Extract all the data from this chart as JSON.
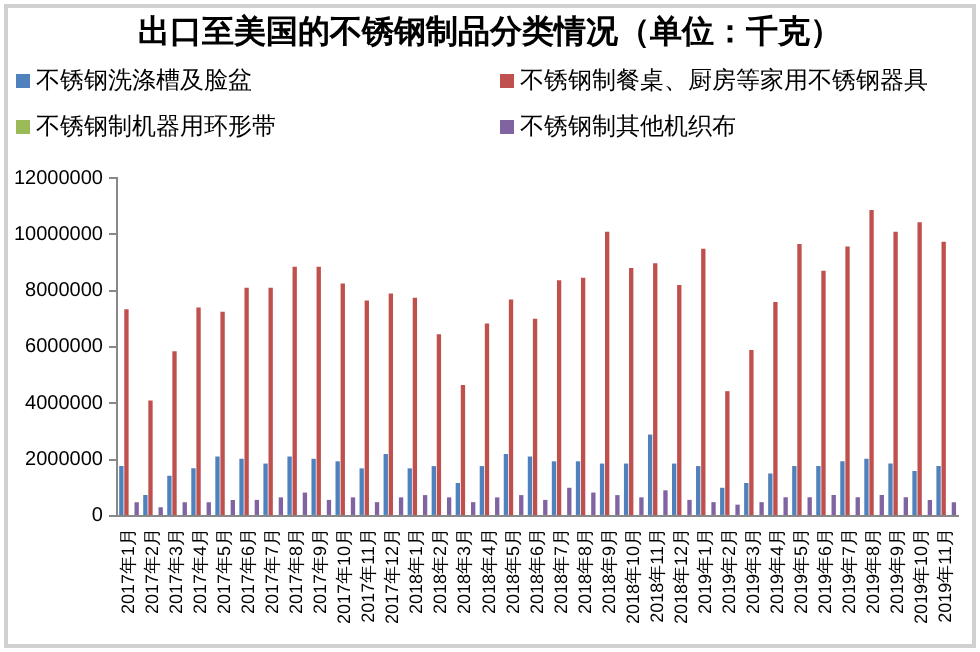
{
  "chart_data": {
    "type": "bar",
    "title": "出口至美国的不锈钢制品分类情况（单位：千克）",
    "categories": [
      "2017年1月",
      "2017年2月",
      "2017年3月",
      "2017年4月",
      "2017年5月",
      "2017年6月",
      "2017年7月",
      "2017年8月",
      "2017年9月",
      "2017年10月",
      "2017年11月",
      "2017年12月",
      "2018年1月",
      "2018年2月",
      "2018年3月",
      "2018年4月",
      "2018年5月",
      "2018年6月",
      "2018年7月",
      "2018年8月",
      "2018年9月",
      "2018年10月",
      "2018年11月",
      "2018年12月",
      "2019年1月",
      "2019年2月",
      "2019年3月",
      "2019年4月",
      "2019年5月",
      "2019年6月",
      "2019年7月",
      "2019年8月",
      "2019年9月",
      "2019年10月",
      "2019年11月"
    ],
    "series": [
      {
        "name": "不锈钢洗涤槽及脸盆",
        "color": "#4f81bd",
        "values": [
          1770000,
          740000,
          1430000,
          1690000,
          2110000,
          2030000,
          1860000,
          2110000,
          2030000,
          1940000,
          1690000,
          2200000,
          1690000,
          1770000,
          1170000,
          1770000,
          2200000,
          2110000,
          1940000,
          1940000,
          1860000,
          1860000,
          2890000,
          1860000,
          1770000,
          1000000,
          1170000,
          1510000,
          1770000,
          1770000,
          1940000,
          2030000,
          1860000,
          1600000,
          1770000
        ]
      },
      {
        "name": "不锈钢制餐桌、厨房等家用不锈钢器具",
        "color": "#c0504d",
        "values": [
          7340000,
          4100000,
          5850000,
          7400000,
          7250000,
          8100000,
          8100000,
          8850000,
          8850000,
          8250000,
          7650000,
          7900000,
          7750000,
          6450000,
          4650000,
          6830000,
          7690000,
          7000000,
          8370000,
          8460000,
          10090000,
          8800000,
          8970000,
          8200000,
          9490000,
          4430000,
          5890000,
          7600000,
          9660000,
          8710000,
          9570000,
          10860000,
          10090000,
          10430000,
          9740000
        ]
      },
      {
        "name": "不锈钢制机器用环形带",
        "color": "#9bbb59",
        "values": [
          0,
          0,
          0,
          0,
          0,
          0,
          0,
          0,
          0,
          0,
          0,
          0,
          0,
          0,
          0,
          0,
          0,
          0,
          0,
          0,
          0,
          0,
          0,
          0,
          0,
          0,
          0,
          0,
          0,
          0,
          0,
          0,
          0,
          0,
          0
        ]
      },
      {
        "name": "不锈钢制其他机织布",
        "color": "#8064a2",
        "values": [
          490000,
          310000,
          490000,
          490000,
          570000,
          570000,
          660000,
          830000,
          570000,
          660000,
          490000,
          660000,
          740000,
          660000,
          490000,
          660000,
          740000,
          570000,
          1000000,
          830000,
          740000,
          660000,
          910000,
          570000,
          490000,
          400000,
          490000,
          660000,
          660000,
          740000,
          660000,
          740000,
          660000,
          570000,
          490000
        ]
      }
    ],
    "ylim": [
      0,
      12000000
    ],
    "yticks": [
      0,
      2000000,
      4000000,
      6000000,
      8000000,
      10000000,
      12000000
    ],
    "grid": false,
    "legend": "top"
  }
}
